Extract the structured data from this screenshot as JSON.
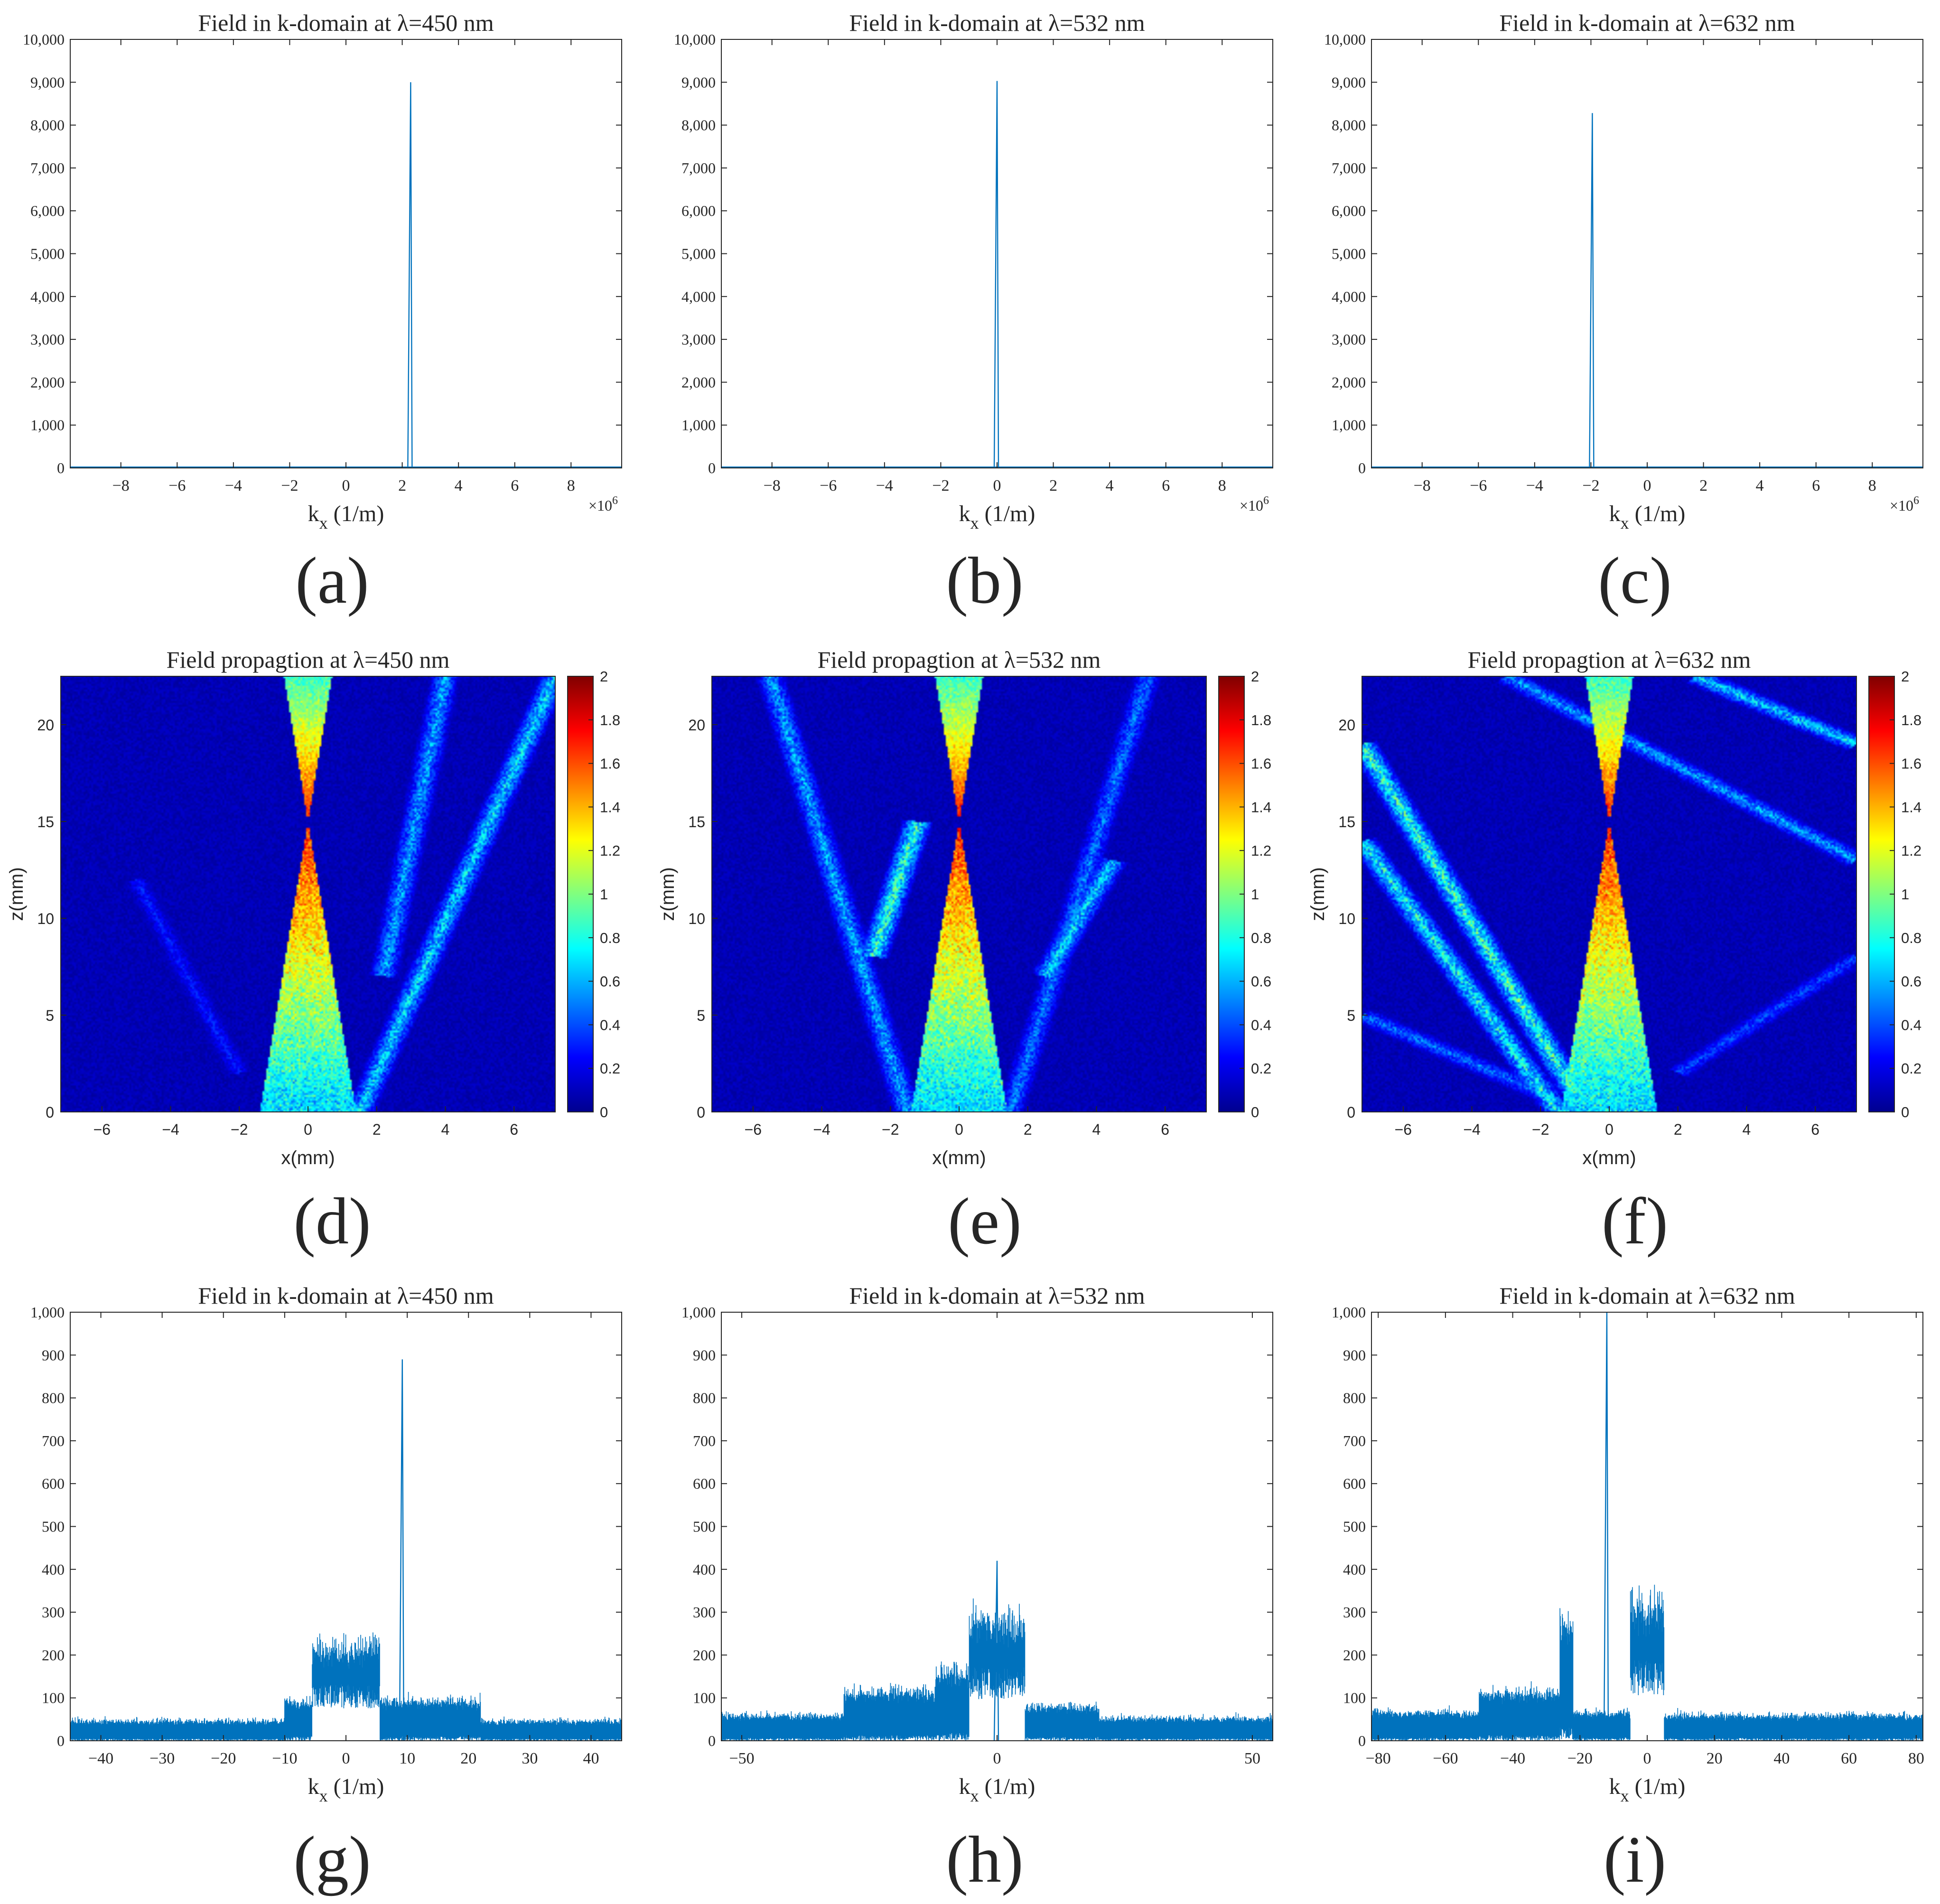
{
  "figure": {
    "panel_labels": [
      "(a)",
      "(b)",
      "(c)",
      "(d)",
      "(e)",
      "(f)",
      "(g)",
      "(h)",
      "(i)"
    ],
    "colors": {
      "line": "#0072bd",
      "axis": "#262626",
      "background": "#ffffff"
    }
  },
  "chart_data": [
    {
      "id": "a",
      "type": "line",
      "title": "Field in k-domain at λ=450 nm",
      "xlabel_main": "k",
      "xlabel_sub": "x",
      "xlabel_rest": " (1/m)",
      "xlim": [
        -9.8,
        9.8
      ],
      "ylim": [
        0,
        10000
      ],
      "xticks": [
        -8,
        -6,
        -4,
        -2,
        0,
        2,
        4,
        6,
        8
      ],
      "xtick_labels": [
        "−8",
        "−6",
        "−4",
        "−2",
        "0",
        "2",
        "4",
        "6",
        "8"
      ],
      "yticks": [
        0,
        1000,
        2000,
        3000,
        4000,
        5000,
        6000,
        7000,
        8000,
        9000,
        10000
      ],
      "ytick_labels": [
        "0",
        "1,000",
        "2,000",
        "3,000",
        "4,000",
        "5,000",
        "6,000",
        "7,000",
        "8,000",
        "9,000",
        "10,000"
      ],
      "exponent_base": "×10",
      "exponent_power": "6",
      "series": [
        {
          "name": "field",
          "peaks": [
            {
              "x": 2.3,
              "y": 9000
            }
          ],
          "baseline": 0
        }
      ]
    },
    {
      "id": "b",
      "type": "line",
      "title": "Field in k-domain at λ=532 nm",
      "xlabel_main": "k",
      "xlabel_sub": "x",
      "xlabel_rest": " (1/m)",
      "xlim": [
        -9.8,
        9.8
      ],
      "ylim": [
        0,
        10000
      ],
      "xticks": [
        -8,
        -6,
        -4,
        -2,
        0,
        2,
        4,
        6,
        8
      ],
      "xtick_labels": [
        "−8",
        "−6",
        "−4",
        "−2",
        "0",
        "2",
        "4",
        "6",
        "8"
      ],
      "yticks": [
        0,
        1000,
        2000,
        3000,
        4000,
        5000,
        6000,
        7000,
        8000,
        9000,
        10000
      ],
      "ytick_labels": [
        "0",
        "1,000",
        "2,000",
        "3,000",
        "4,000",
        "5,000",
        "6,000",
        "7,000",
        "8,000",
        "9,000",
        "10,000"
      ],
      "exponent_base": "×10",
      "exponent_power": "6",
      "series": [
        {
          "name": "field",
          "peaks": [
            {
              "x": 0.0,
              "y": 9030
            }
          ],
          "baseline": 0
        }
      ]
    },
    {
      "id": "c",
      "type": "line",
      "title": "Field in k-domain at λ=632 nm",
      "xlabel_main": "k",
      "xlabel_sub": "x",
      "xlabel_rest": " (1/m)",
      "xlim": [
        -9.8,
        9.8
      ],
      "ylim": [
        0,
        10000
      ],
      "xticks": [
        -8,
        -6,
        -4,
        -2,
        0,
        2,
        4,
        6,
        8
      ],
      "xtick_labels": [
        "−8",
        "−6",
        "−4",
        "−2",
        "0",
        "2",
        "4",
        "6",
        "8"
      ],
      "yticks": [
        0,
        1000,
        2000,
        3000,
        4000,
        5000,
        6000,
        7000,
        8000,
        9000,
        10000
      ],
      "ytick_labels": [
        "0",
        "1,000",
        "2,000",
        "3,000",
        "4,000",
        "5,000",
        "6,000",
        "7,000",
        "8,000",
        "9,000",
        "10,000"
      ],
      "exponent_base": "×10",
      "exponent_power": "6",
      "series": [
        {
          "name": "field",
          "peaks": [
            {
              "x": -1.95,
              "y": 8280
            }
          ],
          "baseline": 0
        }
      ]
    },
    {
      "id": "d",
      "type": "heatmap",
      "title": "Field propagtion at λ=450 nm",
      "xlabel": "x(mm)",
      "ylabel": "z(mm)",
      "xlim": [
        -7.2,
        7.2
      ],
      "ylim": [
        0,
        22.5
      ],
      "xticks": [
        -6,
        -4,
        -2,
        0,
        2,
        4,
        6
      ],
      "xtick_labels": [
        "−6",
        "−4",
        "−2",
        "0",
        "2",
        "4",
        "6"
      ],
      "yticks": [
        0,
        5,
        10,
        15,
        20
      ],
      "ytick_labels": [
        "0",
        "5",
        "10",
        "15",
        "20"
      ],
      "colorbar_range": [
        0,
        2
      ],
      "colorbar_ticks": [
        0,
        0.2,
        0.4,
        0.6,
        0.8,
        1,
        1.2,
        1.4,
        1.6,
        1.8,
        2
      ],
      "colorbar_tick_labels": [
        "0",
        "0.2",
        "0.4",
        "0.6",
        "0.8",
        "1",
        "1.2",
        "1.4",
        "1.6",
        "1.8",
        "2"
      ],
      "colormap": "jet",
      "focus": {
        "x": 0,
        "z": 15
      },
      "cone_half_width_at_base": 1.4,
      "side_beams": [
        {
          "from": [
            1.5,
            0
          ],
          "to": [
            7.2,
            22.5
          ],
          "intensity": 0.35
        },
        {
          "from": [
            2.2,
            7
          ],
          "to": [
            4.0,
            22.5
          ],
          "intensity": 0.3
        },
        {
          "from": [
            -2.0,
            2
          ],
          "to": [
            -5.0,
            12
          ],
          "intensity": 0.15
        }
      ]
    },
    {
      "id": "e",
      "type": "heatmap",
      "title": "Field propagtion at λ=532 nm",
      "xlabel": "x(mm)",
      "ylabel": "z(mm)",
      "xlim": [
        -7.2,
        7.2
      ],
      "ylim": [
        0,
        22.5
      ],
      "xticks": [
        -6,
        -4,
        -2,
        0,
        2,
        4,
        6
      ],
      "xtick_labels": [
        "−6",
        "−4",
        "−2",
        "0",
        "2",
        "4",
        "6"
      ],
      "yticks": [
        0,
        5,
        10,
        15,
        20
      ],
      "ytick_labels": [
        "0",
        "5",
        "10",
        "15",
        "20"
      ],
      "colorbar_range": [
        0,
        2
      ],
      "colorbar_ticks": [
        0,
        0.2,
        0.4,
        0.6,
        0.8,
        1,
        1.2,
        1.4,
        1.6,
        1.8,
        2
      ],
      "colorbar_tick_labels": [
        "0",
        "0.2",
        "0.4",
        "0.6",
        "0.8",
        "1",
        "1.2",
        "1.4",
        "1.6",
        "1.8",
        "2"
      ],
      "colormap": "jet",
      "focus": {
        "x": 0,
        "z": 15
      },
      "cone_half_width_at_base": 1.4,
      "side_beams": [
        {
          "from": [
            -1.5,
            0
          ],
          "to": [
            -5.5,
            22.5
          ],
          "intensity": 0.3
        },
        {
          "from": [
            1.5,
            0
          ],
          "to": [
            5.5,
            22.5
          ],
          "intensity": 0.25
        },
        {
          "from": [
            -2.5,
            8
          ],
          "to": [
            -1.2,
            15
          ],
          "intensity": 0.45
        },
        {
          "from": [
            2.5,
            7
          ],
          "to": [
            4.5,
            13
          ],
          "intensity": 0.35
        }
      ]
    },
    {
      "id": "f",
      "type": "heatmap",
      "title": "Field propagtion at λ=632 nm",
      "xlabel": "x(mm)",
      "ylabel": "z(mm)",
      "xlim": [
        -7.2,
        7.2
      ],
      "ylim": [
        0,
        22.5
      ],
      "xticks": [
        -6,
        -4,
        -2,
        0,
        2,
        4,
        6
      ],
      "xtick_labels": [
        "−6",
        "−4",
        "−2",
        "0",
        "2",
        "4",
        "6"
      ],
      "yticks": [
        0,
        5,
        10,
        15,
        20
      ],
      "ytick_labels": [
        "0",
        "5",
        "10",
        "15",
        "20"
      ],
      "colorbar_range": [
        0,
        2
      ],
      "colorbar_ticks": [
        0,
        0.2,
        0.4,
        0.6,
        0.8,
        1,
        1.2,
        1.4,
        1.6,
        1.8,
        2
      ],
      "colorbar_tick_labels": [
        "0",
        "0.2",
        "0.4",
        "0.6",
        "0.8",
        "1",
        "1.2",
        "1.4",
        "1.6",
        "1.8",
        "2"
      ],
      "colormap": "jet",
      "focus": {
        "x": 0,
        "z": 15
      },
      "cone_half_width_at_base": 1.4,
      "side_beams": [
        {
          "from": [
            -7.2,
            19
          ],
          "to": [
            -1.0,
            1
          ],
          "intensity": 0.45
        },
        {
          "from": [
            -7.2,
            14
          ],
          "to": [
            -1.5,
            0
          ],
          "intensity": 0.4
        },
        {
          "from": [
            -3.0,
            22.5
          ],
          "to": [
            7.2,
            13
          ],
          "intensity": 0.3
        },
        {
          "from": [
            2.5,
            22.5
          ],
          "to": [
            7.2,
            19
          ],
          "intensity": 0.35
        },
        {
          "from": [
            -7.2,
            5
          ],
          "to": [
            -2.0,
            1
          ],
          "intensity": 0.25
        },
        {
          "from": [
            2.0,
            2
          ],
          "to": [
            7.2,
            8
          ],
          "intensity": 0.2
        }
      ]
    },
    {
      "id": "g",
      "type": "line",
      "title": "Field in k-domain at λ=450 nm",
      "xlabel_main": "k",
      "xlabel_sub": "x",
      "xlabel_rest": " (1/m)",
      "xlim": [
        -45,
        45
      ],
      "ylim": [
        0,
        1000
      ],
      "xticks": [
        -40,
        -30,
        -20,
        -10,
        0,
        10,
        20,
        30,
        40
      ],
      "xtick_labels": [
        "−40",
        "−30",
        "−20",
        "−10",
        "0",
        "10",
        "20",
        "30",
        "40"
      ],
      "yticks": [
        0,
        100,
        200,
        300,
        400,
        500,
        600,
        700,
        800,
        900,
        1000
      ],
      "ytick_labels": [
        "0",
        "100",
        "200",
        "300",
        "400",
        "500",
        "600",
        "700",
        "800",
        "900",
        "1,000"
      ],
      "series": [
        {
          "name": "field",
          "segments": [
            {
              "from": -45,
              "to": -10,
              "level": 35
            },
            {
              "from": -10,
              "to": -5.5,
              "level": 70
            },
            {
              "from": -5.5,
              "to": 5.5,
              "level": 165
            },
            {
              "from": 5.5,
              "to": 22,
              "level": 70
            },
            {
              "from": 22,
              "to": 45,
              "level": 35
            }
          ],
          "gap": [
            -5.5,
            5.5
          ],
          "peaks": [
            {
              "x": 9.2,
              "y": 890
            }
          ]
        }
      ]
    },
    {
      "id": "h",
      "type": "line",
      "title": "Field in k-domain at λ=532 nm",
      "xlabel_main": "k",
      "xlabel_sub": "x",
      "xlabel_rest": " (1/m)",
      "xlim": [
        -54,
        54
      ],
      "ylim": [
        0,
        1000
      ],
      "xticks": [
        -50,
        0,
        50
      ],
      "xtick_labels": [
        "−50",
        "0",
        "50"
      ],
      "yticks": [
        0,
        100,
        200,
        300,
        400,
        500,
        600,
        700,
        800,
        900,
        1000
      ],
      "ytick_labels": [
        "0",
        "100",
        "200",
        "300",
        "400",
        "500",
        "600",
        "700",
        "800",
        "900",
        "1,000"
      ],
      "series": [
        {
          "name": "field",
          "segments": [
            {
              "from": -54,
              "to": -30,
              "level": 45
            },
            {
              "from": -30,
              "to": -12,
              "level": 85
            },
            {
              "from": -12,
              "to": -5.5,
              "level": 120
            },
            {
              "from": -5.5,
              "to": 5.5,
              "level": 215
            },
            {
              "from": 5.5,
              "to": 20,
              "level": 60
            },
            {
              "from": 20,
              "to": 54,
              "level": 40
            }
          ],
          "gap": [
            -5.5,
            5.5
          ],
          "peaks": [
            {
              "x": 0,
              "y": 420
            }
          ]
        }
      ]
    },
    {
      "id": "i",
      "type": "line",
      "title": "Field in k-domain at λ=632 nm",
      "xlabel_main": "k",
      "xlabel_sub": "x",
      "xlabel_rest": " (1/m)",
      "xlim": [
        -82,
        82
      ],
      "ylim": [
        0,
        1000
      ],
      "xticks": [
        -80,
        -60,
        -40,
        -20,
        0,
        20,
        40,
        60,
        80
      ],
      "xtick_labels": [
        "−80",
        "−60",
        "−40",
        "−20",
        "0",
        "20",
        "40",
        "60",
        "80"
      ],
      "yticks": [
        0,
        100,
        200,
        300,
        400,
        500,
        600,
        700,
        800,
        900,
        1000
      ],
      "ytick_labels": [
        "0",
        "100",
        "200",
        "300",
        "400",
        "500",
        "600",
        "700",
        "800",
        "900",
        "1,000"
      ],
      "series": [
        {
          "name": "field",
          "segments": [
            {
              "from": -82,
              "to": -50,
              "level": 50
            },
            {
              "from": -50,
              "to": -26,
              "level": 85
            },
            {
              "from": -26,
              "to": -22,
              "level": 210
            },
            {
              "from": -22,
              "to": -5,
              "level": 50
            },
            {
              "from": -5,
              "to": 5,
              "level": 235
            },
            {
              "from": 5,
              "to": 82,
              "level": 45
            }
          ],
          "gap": [
            -5,
            5
          ],
          "peaks": [
            {
              "x": -12,
              "y": 1000
            }
          ]
        }
      ]
    }
  ]
}
